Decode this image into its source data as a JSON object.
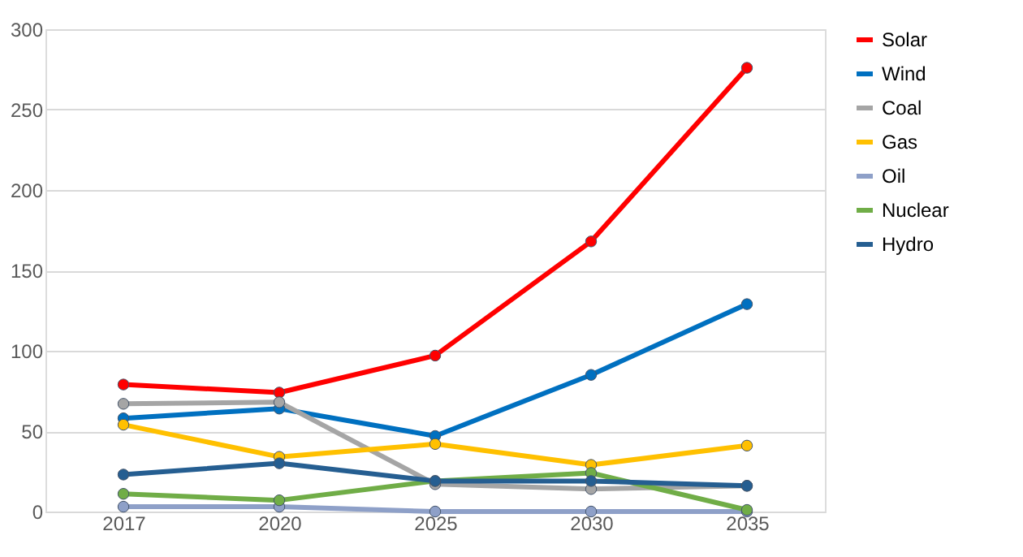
{
  "chart_data": {
    "type": "line",
    "categories": [
      "2017",
      "2020",
      "2025",
      "2030",
      "2035"
    ],
    "series": [
      {
        "name": "Solar",
        "color": "#ff0000",
        "values": [
          79,
          74,
          97,
          168,
          276
        ]
      },
      {
        "name": "Wind",
        "color": "#0070c0",
        "values": [
          58,
          64,
          47,
          85,
          129
        ]
      },
      {
        "name": "Coal",
        "color": "#a5a5a5",
        "values": [
          67,
          68,
          17,
          14,
          16
        ]
      },
      {
        "name": "Gas",
        "color": "#ffc000",
        "values": [
          54,
          34,
          42,
          29,
          41
        ]
      },
      {
        "name": "Oil",
        "color": "#8ea0c8",
        "values": [
          3,
          3,
          0,
          0,
          0
        ]
      },
      {
        "name": "Nuclear",
        "color": "#70ad47",
        "values": [
          11,
          7,
          19,
          24,
          1
        ]
      },
      {
        "name": "Hydro",
        "color": "#255e91",
        "values": [
          23,
          30,
          19,
          19,
          16
        ]
      }
    ],
    "ylim": [
      0,
      300
    ],
    "yticks": [
      0,
      50,
      100,
      150,
      200,
      250,
      300
    ],
    "grid": "y",
    "legend": "right",
    "marker": "circle",
    "line_style": "solid"
  }
}
